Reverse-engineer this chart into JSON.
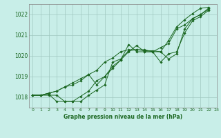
{
  "title": "Graphe pression niveau de la mer (hPa)",
  "bg_color": "#c8eee8",
  "line_color": "#1a6620",
  "grid_color": "#a0c8c0",
  "xlim": [
    -0.5,
    23
  ],
  "ylim": [
    1017.5,
    1022.5
  ],
  "yticks": [
    1018,
    1019,
    1020,
    1021,
    1022
  ],
  "xticks": [
    0,
    1,
    2,
    3,
    4,
    5,
    6,
    7,
    8,
    9,
    10,
    11,
    12,
    13,
    14,
    15,
    16,
    17,
    18,
    19,
    20,
    21,
    22,
    23
  ],
  "series": [
    {
      "x": [
        0,
        1,
        2,
        3,
        4,
        5,
        6,
        7,
        8,
        9,
        10,
        11,
        12,
        13,
        14,
        15,
        16,
        17,
        18,
        19,
        20,
        21,
        22
      ],
      "y": [
        1018.1,
        1018.1,
        1018.1,
        1018.1,
        1017.8,
        1017.8,
        1017.8,
        1018.1,
        1018.35,
        1018.6,
        1019.7,
        1019.85,
        1020.25,
        1020.3,
        1020.25,
        1020.25,
        1020.2,
        1019.85,
        1020.1,
        1021.3,
        1021.8,
        1022.0,
        1022.25
      ]
    },
    {
      "x": [
        0,
        1,
        2,
        3,
        4,
        5,
        6,
        7,
        8,
        9,
        10,
        11,
        12,
        13,
        14,
        15,
        16,
        17,
        18,
        19,
        20,
        21,
        22
      ],
      "y": [
        1018.1,
        1018.1,
        1018.15,
        1017.8,
        1017.8,
        1017.8,
        1018.05,
        1018.3,
        1018.8,
        1019.0,
        1019.4,
        1019.8,
        1020.2,
        1020.5,
        1020.2,
        1020.2,
        1019.7,
        1020.1,
        1020.2,
        1021.1,
        1021.7,
        1021.9,
        1022.2
      ]
    },
    {
      "x": [
        0,
        1,
        2,
        3,
        4,
        5,
        6,
        7,
        8,
        9,
        10,
        11,
        12,
        13,
        14,
        15,
        16,
        17,
        18,
        19,
        20,
        21,
        22
      ],
      "y": [
        1018.1,
        1018.1,
        1018.2,
        1018.3,
        1018.5,
        1018.6,
        1018.8,
        1019.1,
        1019.3,
        1019.7,
        1019.9,
        1020.2,
        1020.3,
        1020.3,
        1020.3,
        1020.2,
        1020.4,
        1020.6,
        1021.3,
        1021.5,
        1021.8,
        1022.0,
        1022.3
      ]
    },
    {
      "x": [
        0,
        1,
        2,
        3,
        4,
        5,
        6,
        7,
        8,
        9,
        10,
        11,
        12,
        13,
        14,
        15,
        16,
        17,
        18,
        19,
        20,
        21,
        22
      ],
      "y": [
        1018.1,
        1018.1,
        1018.2,
        1018.3,
        1018.5,
        1018.7,
        1018.9,
        1019.1,
        1018.6,
        1019.0,
        1019.5,
        1019.8,
        1020.55,
        1020.2,
        1020.2,
        1020.2,
        1020.2,
        1020.75,
        1021.4,
        1021.75,
        1022.05,
        1022.3,
        1022.35
      ]
    }
  ]
}
